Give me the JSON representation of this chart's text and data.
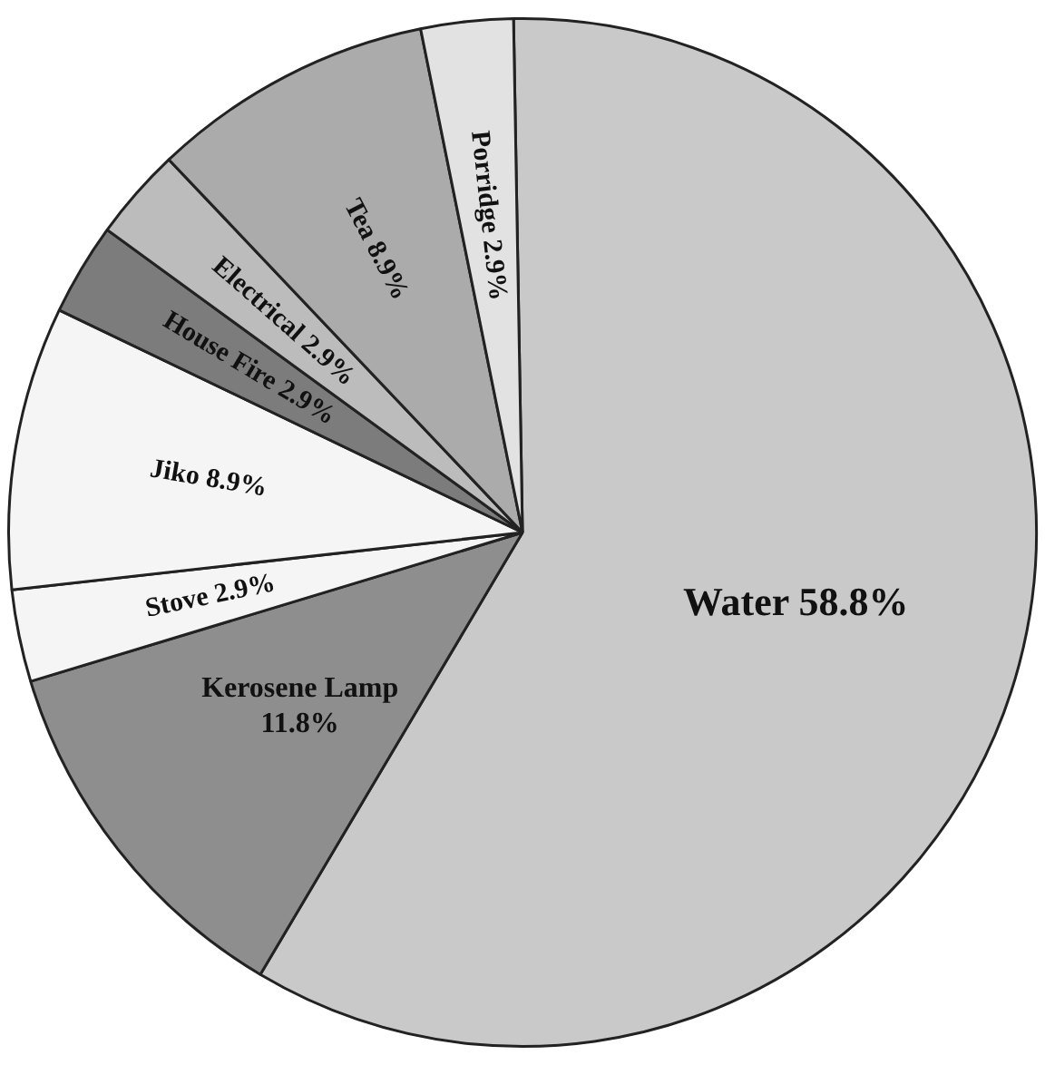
{
  "chart_data": {
    "type": "pie",
    "categories": [
      "Water",
      "Kerosene Lamp",
      "Stove",
      "Jiko",
      "House Fire",
      "Electrical",
      "Tea",
      "Porridge"
    ],
    "values": [
      58.8,
      11.8,
      2.9,
      8.9,
      2.9,
      2.9,
      8.9,
      2.9
    ],
    "value_labels": [
      "58.8%",
      "11.8%",
      "2.9%",
      "8.9%",
      "2.9%",
      "2.9%",
      "8.9%",
      "2.9%"
    ],
    "colors": [
      "#c9c9c9",
      "#8e8e8e",
      "#f5f5f5",
      "#f5f5f5",
      "#7c7c7c",
      "#bcbcbc",
      "#ababab",
      "#e2e2e2"
    ],
    "legend": false
  }
}
